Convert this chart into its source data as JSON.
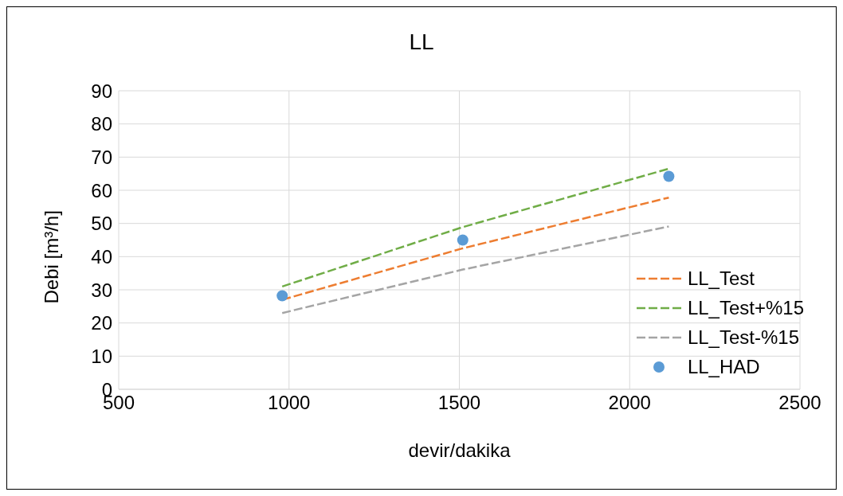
{
  "chart_data": {
    "type": "line",
    "title": "LL",
    "xlabel": "devir/dakika",
    "ylabel": "Debi [m³/h]",
    "xlim": [
      500,
      2500
    ],
    "xticks": [
      500,
      1000,
      1500,
      2000,
      2500
    ],
    "ylim": [
      0,
      90
    ],
    "yticks": [
      0,
      10,
      20,
      30,
      40,
      50,
      60,
      70,
      80,
      90
    ],
    "grid": true,
    "legend": "bottom right",
    "line_style": "dashed",
    "marker": "none",
    "series": [
      {
        "name": "LL_Test",
        "color": "#ed7d31",
        "x": [
          980,
          1510,
          2115
        ],
        "values": [
          27,
          42.5,
          57.8
        ]
      },
      {
        "name": "LL_Test+%15",
        "color": "#70ad47",
        "x": [
          980,
          1510,
          2115
        ],
        "values": [
          31,
          48.9,
          66.5
        ]
      },
      {
        "name": "LL_Test-%15",
        "color": "#a5a5a5",
        "x": [
          980,
          1510,
          2115
        ],
        "values": [
          23,
          36.1,
          49.1
        ]
      },
      {
        "name": "LL_HAD",
        "type": "scatter",
        "marker": "circle",
        "color": "#5b9bd5",
        "x": [
          980,
          1510,
          2115
        ],
        "values": [
          28.2,
          45,
          64.2
        ]
      }
    ]
  }
}
